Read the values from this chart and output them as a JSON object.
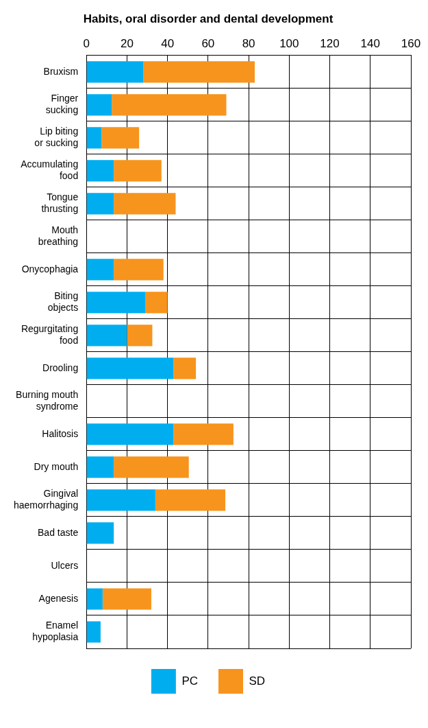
{
  "chart_data": {
    "type": "bar",
    "orientation": "horizontal",
    "stacked": true,
    "title": "Habits, oral disorder and dental development",
    "categories": [
      "Bruxism",
      "Finger sucking",
      "Lip biting or sucking",
      "Accumulating food",
      "Tongue thrusting",
      "Mouth breathing",
      "Onycophagia",
      "Biting objects",
      "Regurgitating food",
      "Drooling",
      "Burning mouth syndrome",
      "Halitosis",
      "Dry mouth",
      "Gingival haemorrhaging",
      "Bad taste",
      "Ulcers",
      "Agenesis",
      "Enamel hypoplasia"
    ],
    "series": [
      {
        "name": "PC",
        "color": "#00aeef",
        "values": [
          28,
          12.5,
          7.5,
          13.5,
          13.5,
          0,
          13.5,
          29,
          20,
          43,
          0,
          43,
          13.5,
          34,
          13.5,
          0,
          8,
          7
        ]
      },
      {
        "name": "SD",
        "color": "#f7941d",
        "values": [
          55,
          56.5,
          18.5,
          23.5,
          30.5,
          0,
          24.5,
          11,
          12.5,
          11,
          0,
          29.5,
          37,
          34.5,
          0,
          0,
          24,
          0
        ]
      }
    ],
    "xlim": [
      0,
      160
    ],
    "xticks": [
      0,
      20,
      40,
      60,
      80,
      100,
      120,
      140,
      160
    ],
    "grid": true,
    "legend": "bottom"
  }
}
